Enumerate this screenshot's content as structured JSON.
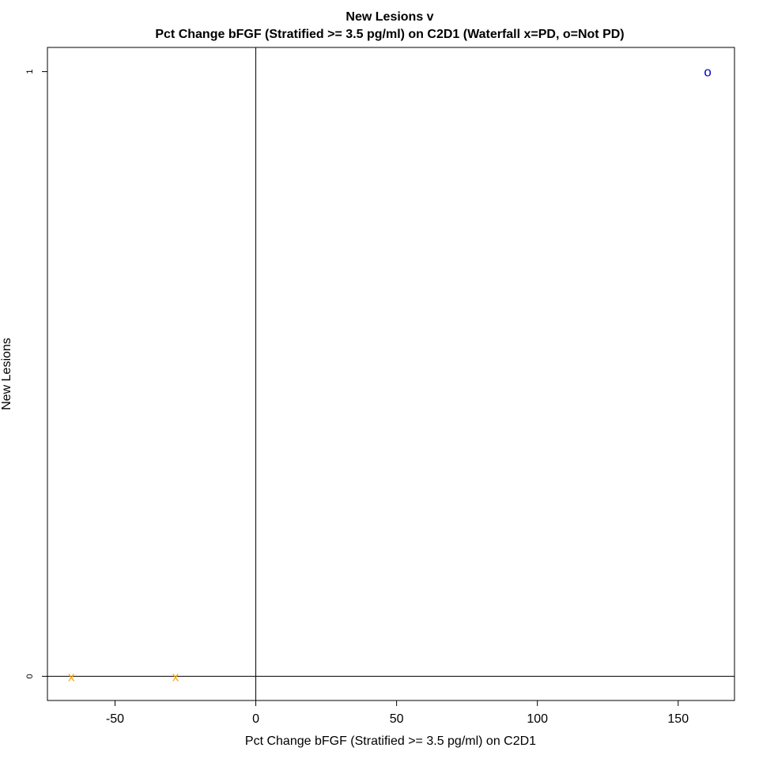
{
  "chart_data": {
    "type": "scatter",
    "title": "New Lesions v",
    "subtitle": "Pct Change bFGF (Stratified >= 3.5 pg/ml) on C2D1 (Waterfall x=PD, o=Not PD)",
    "xlabel": "Pct Change bFGF (Stratified >= 3.5 pg/ml) on C2D1",
    "ylabel": "New Lesions",
    "xlim": [
      -74,
      170
    ],
    "ylim": [
      -0.04,
      1.04
    ],
    "x_ticks": [
      -50,
      0,
      50,
      100,
      150
    ],
    "y_ticks": [
      0,
      1
    ],
    "reference_lines": {
      "vertical_x": 0,
      "horizontal_y": 0
    },
    "grid": false,
    "points": [
      {
        "x": -65.5,
        "y": 0,
        "marker": "x",
        "color": "#FFA500"
      },
      {
        "x": -28.5,
        "y": 0,
        "marker": "x",
        "color": "#FFA500"
      },
      {
        "x": 160.5,
        "y": 1,
        "marker": "o",
        "color": "#0000CD"
      }
    ]
  }
}
